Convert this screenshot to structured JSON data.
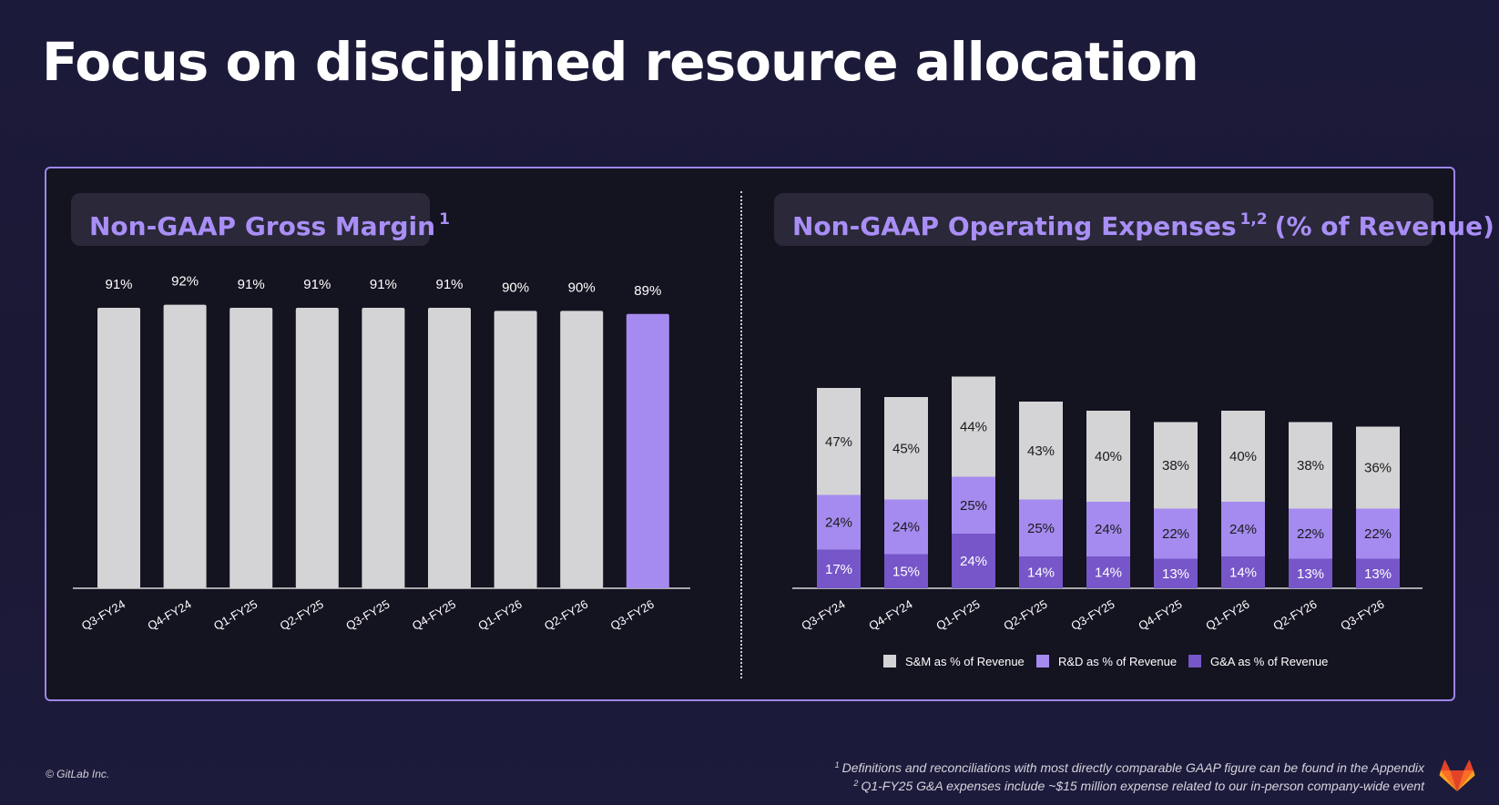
{
  "title": "Focus on disciplined resource allocation",
  "charts": {
    "gross_margin": {
      "title": "Non-GAAP Gross Margin",
      "footnote_ref": "1"
    },
    "opex": {
      "title": "Non-GAAP Operating Expenses",
      "footnote_ref": "1,2",
      "title_suffix": "(% of Revenue)"
    }
  },
  "chart_data": [
    {
      "type": "bar",
      "title": "Non-GAAP Gross Margin 1",
      "categories": [
        "Q3-FY24",
        "Q4-FY24",
        "Q1-FY25",
        "Q2-FY25",
        "Q3-FY25",
        "Q4-FY25",
        "Q1-FY26",
        "Q2-FY26",
        "Q3-FY26"
      ],
      "values": [
        91,
        92,
        91,
        91,
        91,
        91,
        90,
        90,
        89
      ],
      "labels": [
        "91%",
        "92%",
        "91%",
        "91%",
        "91%",
        "91%",
        "90%",
        "90%",
        "89%"
      ],
      "highlight_index": 8,
      "colors": {
        "default": "#d4d4d6",
        "highlight": "#a58bf0",
        "axis": "#d8d8d8",
        "label": "#ffffff"
      },
      "xlabel": "",
      "ylabel": "",
      "ylim": [
        0,
        100
      ],
      "grid": false
    },
    {
      "type": "bar",
      "stacked": true,
      "title": "Non-GAAP Operating Expenses 1,2 (% of Revenue)",
      "categories": [
        "Q3-FY24",
        "Q4-FY24",
        "Q1-FY25",
        "Q2-FY25",
        "Q3-FY25",
        "Q4-FY25",
        "Q1-FY26",
        "Q2-FY26",
        "Q3-FY26"
      ],
      "series": [
        {
          "name": "G&A as % of Revenue",
          "values": [
            17,
            15,
            24,
            14,
            14,
            13,
            14,
            13,
            13
          ],
          "labels": [
            "17%",
            "15%",
            "24%",
            "14%",
            "14%",
            "13%",
            "14%",
            "13%",
            "13%"
          ],
          "color": "#7656c8",
          "label_color": "#ffffff"
        },
        {
          "name": "R&D as % of Revenue",
          "values": [
            24,
            24,
            25,
            25,
            24,
            22,
            24,
            22,
            22
          ],
          "labels": [
            "24%",
            "24%",
            "25%",
            "25%",
            "24%",
            "22%",
            "24%",
            "22%",
            "22%"
          ],
          "color": "#a58bf0",
          "label_color": "#1a1a1a"
        },
        {
          "name": "S&M as % of Revenue",
          "values": [
            47,
            45,
            44,
            43,
            40,
            38,
            40,
            38,
            36
          ],
          "labels": [
            "47%",
            "45%",
            "44%",
            "43%",
            "40%",
            "38%",
            "40%",
            "38%",
            "36%"
          ],
          "color": "#d4d4d6",
          "label_color": "#1a1a1a"
        }
      ],
      "legend": [
        "S&M as % of Revenue",
        "R&D as % of Revenue",
        "G&A as % of Revenue"
      ],
      "legend_position": "bottom",
      "xlabel": "",
      "ylabel": "",
      "ylim": [
        0,
        130
      ],
      "grid": false
    }
  ],
  "footer": {
    "copyright": "© GitLab Inc.",
    "note1_marker": "1",
    "note1": "Definitions and reconciliations with most directly comparable GAAP figure can be found in the Appendix",
    "note2_marker": "2",
    "note2": "Q1-FY25 G&A expenses include ~$15 million expense related to our in-person company-wide event"
  },
  "logo": {
    "name": "GitLab",
    "colors": [
      "#e24329",
      "#fc6d26",
      "#fca326"
    ]
  }
}
